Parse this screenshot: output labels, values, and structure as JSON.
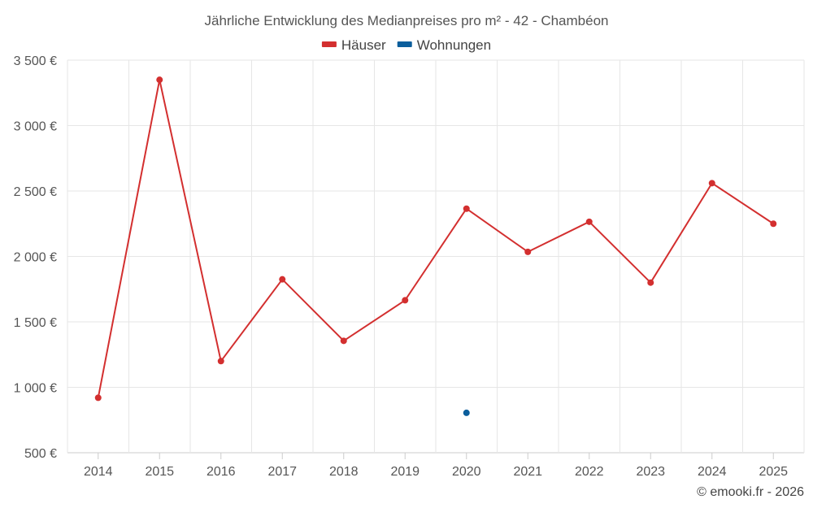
{
  "chart_data": {
    "type": "line",
    "title": "Jährliche Entwicklung des Medianpreises pro m² - 42 - Chambéon",
    "categories": [
      "2014",
      "2015",
      "2016",
      "2017",
      "2018",
      "2019",
      "2020",
      "2021",
      "2022",
      "2023",
      "2024",
      "2025"
    ],
    "y_ticks": [
      500,
      1000,
      1500,
      2000,
      2500,
      3000,
      3500
    ],
    "y_tick_labels": [
      "500 €",
      "1 000 €",
      "1 500 €",
      "2 000 €",
      "2 500 €",
      "3 000 €",
      "3 500 €"
    ],
    "ylim": [
      500,
      3500
    ],
    "series": [
      {
        "name": "Häuser",
        "color": "#d32f2f",
        "values": [
          920,
          3350,
          1200,
          1825,
          1355,
          1665,
          2365,
          2035,
          2265,
          1800,
          2560,
          2250
        ]
      },
      {
        "name": "Wohnungen",
        "color": "#0b5e9c",
        "values": [
          null,
          null,
          null,
          null,
          null,
          null,
          805,
          null,
          null,
          null,
          null,
          null
        ]
      }
    ]
  },
  "credit": "© emooki.fr - 2026"
}
